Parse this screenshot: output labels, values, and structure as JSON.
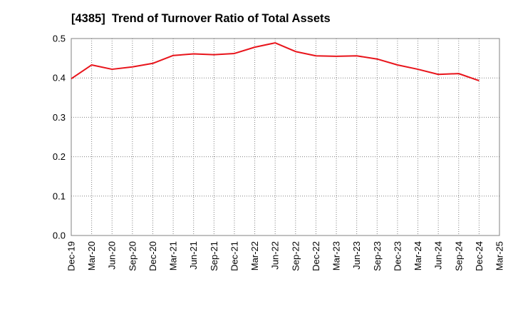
{
  "chart_data": {
    "type": "line",
    "title": "[4385]  Trend of Turnover Ratio of Total Assets",
    "xlabel": "",
    "ylabel": "",
    "ylim": [
      0,
      0.5
    ],
    "yticks": [
      "0.0",
      "0.1",
      "0.2",
      "0.3",
      "0.4",
      "0.5"
    ],
    "x": [
      "Dec-19",
      "Mar-20",
      "Jun-20",
      "Sep-20",
      "Dec-20",
      "Mar-21",
      "Jun-21",
      "Sep-21",
      "Dec-21",
      "Mar-22",
      "Jun-22",
      "Sep-22",
      "Dec-22",
      "Mar-23",
      "Jun-23",
      "Sep-23",
      "Dec-23",
      "Mar-24",
      "Jun-24",
      "Sep-24",
      "Dec-24",
      "Mar-25"
    ],
    "series": [
      {
        "color": "#e8141b",
        "values": [
          0.398,
          0.433,
          0.422,
          0.428,
          0.437,
          0.457,
          0.461,
          0.459,
          0.462,
          0.478,
          0.489,
          0.467,
          0.456,
          0.455,
          0.456,
          0.448,
          0.433,
          0.422,
          0.409,
          0.411,
          0.393,
          null
        ]
      }
    ],
    "grid": true,
    "grid_style": "dotted",
    "grid_color": "#808080"
  }
}
